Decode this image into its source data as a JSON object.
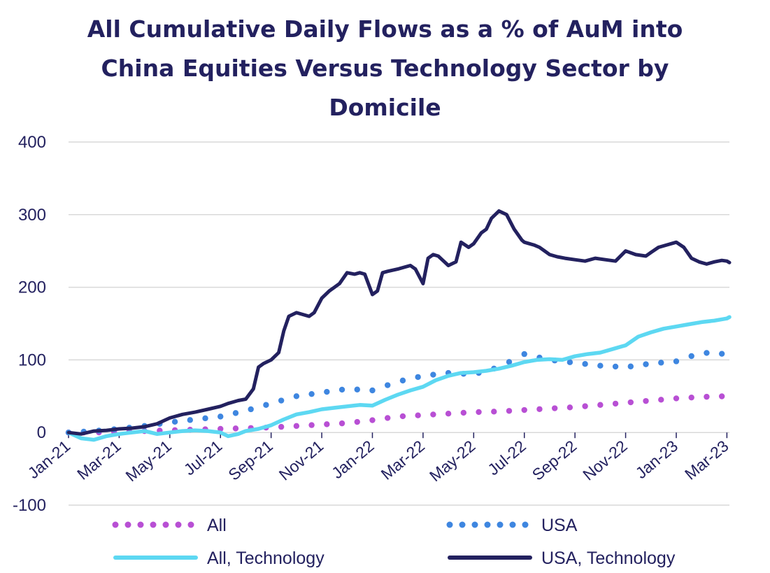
{
  "chart_data": {
    "type": "line",
    "title_lines": [
      "All Cumulative Daily Flows as a % of AuM into",
      "China Equities Versus Technology Sector by",
      "Domicile"
    ],
    "xlabel": "",
    "ylabel": "",
    "ylim": [
      -100,
      400
    ],
    "yticks": [
      -100,
      0,
      100,
      200,
      300,
      400
    ],
    "ytick_labels": [
      "-100",
      "0",
      "100",
      "200",
      "300",
      "400"
    ],
    "grid": true,
    "legend_position": "bottom",
    "x_tick_labels": [
      "Jan-21",
      "Mar-21",
      "May-21",
      "Jul-21",
      "Sep-21",
      "Nov-21",
      "Jan-22",
      "Mar-22",
      "May-22",
      "Jul-22",
      "Sep-22",
      "Nov-22",
      "Jan-23",
      "Mar-23"
    ],
    "x_tick_index": [
      0,
      2,
      4,
      6,
      8,
      10,
      12,
      14,
      16,
      18,
      20,
      22,
      24,
      26
    ],
    "x_range_months": [
      0,
      26.1
    ],
    "series": [
      {
        "name": "All",
        "style": "dotted",
        "color": "#b84fd4",
        "x": [
          0,
          1,
          2,
          3,
          4,
          5,
          6,
          7,
          8,
          9,
          10,
          11,
          12,
          13,
          14,
          15,
          16,
          17,
          18,
          19,
          20,
          21,
          22,
          23,
          24,
          25,
          26
        ],
        "values": [
          0,
          0,
          1,
          2,
          3,
          4,
          5,
          6,
          7,
          9,
          11,
          13,
          17,
          22,
          24,
          26,
          28,
          29,
          31,
          33,
          35,
          38,
          41,
          44,
          47,
          49,
          50
        ]
      },
      {
        "name": "USA",
        "style": "dotted",
        "color": "#3e86e0",
        "x": [
          0,
          1,
          2,
          3,
          4,
          5,
          6,
          7,
          8,
          9,
          10,
          11,
          12,
          13,
          14,
          15,
          16,
          17,
          18,
          19,
          20,
          21,
          22,
          23,
          24,
          25,
          26
        ],
        "values": [
          0,
          2,
          5,
          9,
          14,
          18,
          22,
          30,
          40,
          50,
          55,
          60,
          58,
          70,
          78,
          82,
          80,
          90,
          108,
          100,
          96,
          92,
          90,
          95,
          98,
          110,
          108
        ]
      },
      {
        "name": "All, Technology",
        "style": "solid",
        "color": "#5dd8f2",
        "x": [
          0,
          0.5,
          1,
          1.5,
          2,
          2.5,
          3,
          3.5,
          4,
          4.5,
          5,
          5.5,
          6,
          6.3,
          6.7,
          7,
          7.5,
          8,
          8.5,
          9,
          9.5,
          10,
          10.5,
          11,
          11.5,
          12,
          12.5,
          13,
          13.5,
          14,
          14.5,
          15,
          15.5,
          16,
          16.5,
          17,
          17.5,
          18,
          18.5,
          19,
          19.5,
          20,
          20.5,
          21,
          21.5,
          22,
          22.5,
          23,
          23.5,
          24,
          24.5,
          25,
          25.5,
          26,
          26.1
        ],
        "values": [
          0,
          -8,
          -10,
          -5,
          -2,
          0,
          2,
          -2,
          0,
          2,
          3,
          2,
          0,
          -5,
          -2,
          2,
          5,
          10,
          18,
          25,
          28,
          32,
          34,
          36,
          38,
          37,
          45,
          52,
          58,
          63,
          72,
          78,
          82,
          83,
          85,
          88,
          92,
          97,
          100,
          101,
          100,
          105,
          108,
          110,
          115,
          120,
          132,
          138,
          143,
          146,
          149,
          152,
          154,
          157,
          159
        ]
      },
      {
        "name": "USA, Technology",
        "style": "solid",
        "color": "#23215f",
        "x": [
          0,
          0.5,
          1,
          1.5,
          2,
          2.5,
          3,
          3.5,
          4,
          4.5,
          5,
          5.5,
          6,
          6.3,
          6.5,
          6.7,
          7,
          7.3,
          7.5,
          7.7,
          8,
          8.3,
          8.5,
          8.7,
          9,
          9.3,
          9.5,
          9.7,
          10,
          10.3,
          10.5,
          10.7,
          11,
          11.3,
          11.5,
          11.7,
          12,
          12.2,
          12.4,
          12.6,
          13,
          13.3,
          13.5,
          13.7,
          14,
          14.2,
          14.4,
          14.6,
          15,
          15.3,
          15.5,
          15.8,
          16,
          16.3,
          16.5,
          16.7,
          17,
          17.3,
          17.6,
          17.9,
          18,
          18.2,
          18.4,
          18.6,
          18.8,
          19,
          19.3,
          19.6,
          20,
          20.4,
          20.8,
          21.2,
          21.6,
          22,
          22.4,
          22.8,
          23,
          23.3,
          23.6,
          24,
          24.3,
          24.6,
          24.9,
          25.2,
          25.5,
          25.8,
          26,
          26.1
        ],
        "values": [
          0,
          -2,
          2,
          3,
          5,
          6,
          8,
          12,
          20,
          25,
          28,
          32,
          36,
          40,
          42,
          44,
          46,
          60,
          90,
          95,
          100,
          110,
          140,
          160,
          165,
          162,
          160,
          165,
          185,
          195,
          200,
          205,
          220,
          218,
          220,
          218,
          190,
          195,
          220,
          222,
          225,
          228,
          230,
          225,
          205,
          240,
          245,
          243,
          230,
          235,
          262,
          255,
          260,
          275,
          280,
          295,
          305,
          300,
          280,
          265,
          262,
          260,
          258,
          255,
          250,
          245,
          242,
          240,
          238,
          236,
          240,
          238,
          236,
          250,
          245,
          243,
          248,
          255,
          258,
          262,
          255,
          240,
          235,
          232,
          235,
          237,
          236,
          234
        ]
      }
    ]
  }
}
